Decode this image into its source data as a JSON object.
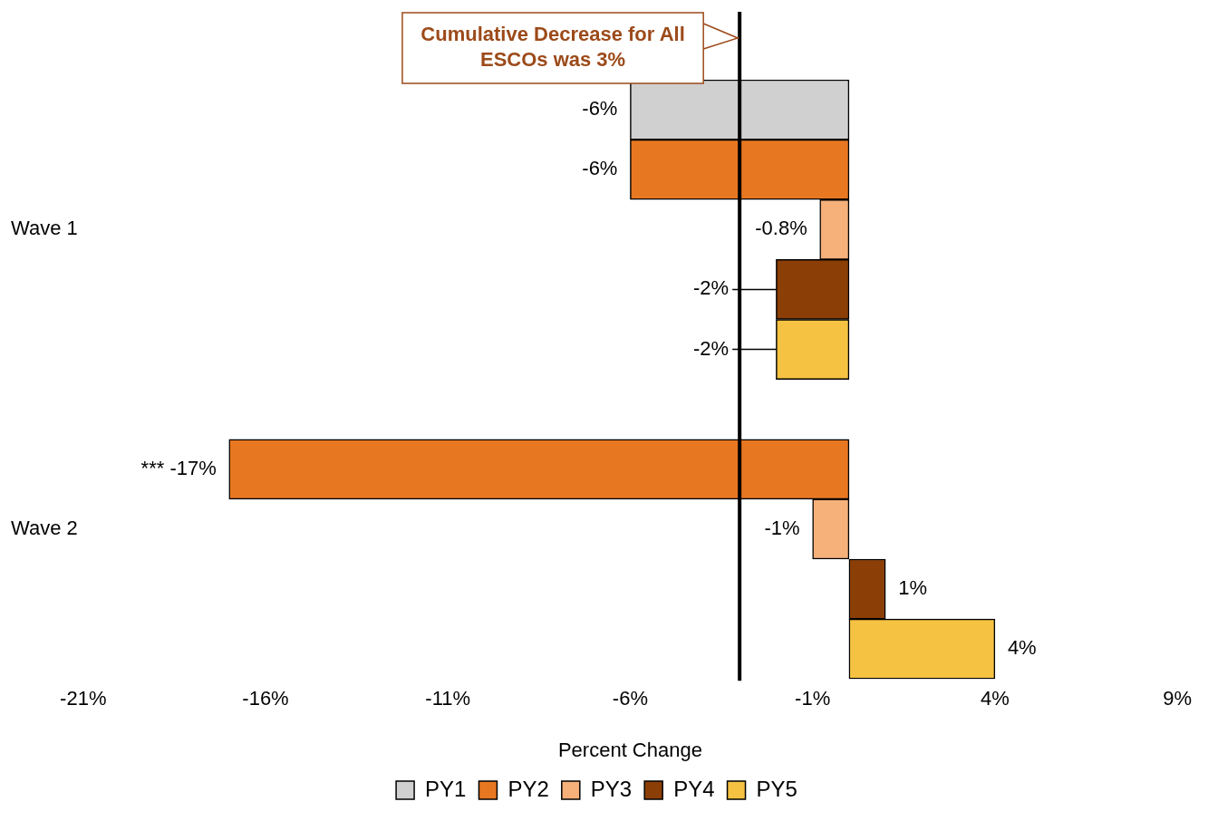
{
  "chart_data": {
    "type": "bar",
    "orientation": "horizontal",
    "xlabel": "Percent Change",
    "categories": [
      "Wave 1",
      "Wave 2"
    ],
    "series": [
      {
        "name": "PY1",
        "color": "#d0d0d0",
        "values": [
          -6,
          null
        ],
        "value_labels": [
          "-6%",
          null
        ]
      },
      {
        "name": "PY2",
        "color": "#e87722",
        "values": [
          -6,
          -17
        ],
        "value_labels": [
          "-6%",
          "*** -17%"
        ]
      },
      {
        "name": "PY3",
        "color": "#f6b07a",
        "values": [
          -0.8,
          -1
        ],
        "value_labels": [
          "-0.8%",
          "-1%"
        ]
      },
      {
        "name": "PY4",
        "color": "#8b3f06",
        "values": [
          -2,
          1
        ],
        "value_labels": [
          "-2%",
          "1%"
        ]
      },
      {
        "name": "PY5",
        "color": "#f5c242",
        "values": [
          -2,
          4
        ],
        "value_labels": [
          "-2%",
          "4%"
        ]
      }
    ],
    "xlim": [
      -21,
      9
    ],
    "xticks": [
      {
        "value": -21,
        "label": "-21%"
      },
      {
        "value": -16,
        "label": "-16%"
      },
      {
        "value": -11,
        "label": "-11%"
      },
      {
        "value": -6,
        "label": "-6%"
      },
      {
        "value": -1,
        "label": "-1%"
      },
      {
        "value": 4,
        "label": "4%"
      },
      {
        "value": 9,
        "label": "9%"
      }
    ],
    "ref_lines": [
      {
        "axis": "x",
        "value": -3,
        "label": "Cumulative Decrease for All ESCOs was 3%",
        "color": "#000000"
      }
    ],
    "legend": "bottom"
  }
}
